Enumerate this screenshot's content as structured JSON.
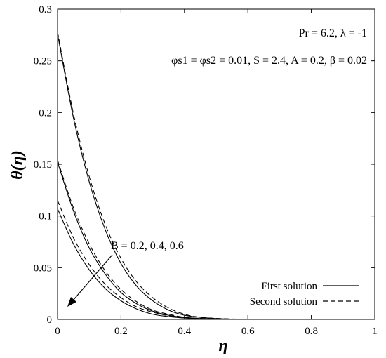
{
  "chart_data": {
    "type": "line",
    "xlabel": "η",
    "ylabel": "θ(η)",
    "xlim": [
      0,
      1
    ],
    "ylim": [
      0,
      0.3
    ],
    "x_ticks": [
      "0",
      "0.2",
      "0.4",
      "0.6",
      "0.8",
      "1"
    ],
    "y_ticks": [
      "0",
      "0.05",
      "0.1",
      "0.15",
      "0.2",
      "0.25",
      "0.3"
    ],
    "x_tick_values": [
      0,
      0.2,
      0.4,
      0.6,
      0.8,
      1
    ],
    "y_tick_values": [
      0,
      0.05,
      0.1,
      0.15,
      0.2,
      0.25,
      0.3
    ],
    "grid": false,
    "legend_position": "bottom-right",
    "legend": [
      {
        "label": "First solution",
        "style": "solid"
      },
      {
        "label": "Second solution",
        "style": "dashed"
      }
    ],
    "annotations": {
      "params_line1": "Pr = 6.2, λ = -1",
      "params_line2": "φs1 = φs2 = 0.01, S = 2.4, A = 0.2, β = 0.02",
      "arrow_label": "B = 0.2, 0.4, 0.6"
    },
    "series": [
      {
        "B": 0.2,
        "style": "solid",
        "x": [
          0,
          0.05,
          0.1,
          0.15,
          0.2,
          0.25,
          0.3,
          0.35,
          0.4,
          0.45,
          0.5,
          0.55,
          0.6,
          0.65
        ],
        "values": [
          0.276,
          0.195,
          0.133,
          0.087,
          0.054,
          0.032,
          0.018,
          0.009,
          0.004,
          0.002,
          0.0008,
          0.0003,
          0.0001,
          0
        ]
      },
      {
        "B": 0.2,
        "style": "dashed",
        "x": [
          0,
          0.05,
          0.1,
          0.15,
          0.2,
          0.25,
          0.3,
          0.35,
          0.4,
          0.45,
          0.5,
          0.55,
          0.6,
          0.65
        ],
        "values": [
          0.278,
          0.199,
          0.138,
          0.092,
          0.059,
          0.036,
          0.021,
          0.011,
          0.005,
          0.002,
          0.001,
          0.0004,
          0.0001,
          0
        ]
      },
      {
        "B": 0.4,
        "style": "solid",
        "x": [
          0,
          0.05,
          0.1,
          0.15,
          0.2,
          0.25,
          0.3,
          0.35,
          0.4,
          0.45,
          0.5,
          0.55,
          0.6,
          0.65
        ],
        "values": [
          0.152,
          0.105,
          0.069,
          0.044,
          0.026,
          0.015,
          0.008,
          0.004,
          0.002,
          0.0008,
          0.0003,
          0.0001,
          0,
          0
        ]
      },
      {
        "B": 0.4,
        "style": "dashed",
        "x": [
          0,
          0.05,
          0.1,
          0.15,
          0.2,
          0.25,
          0.3,
          0.35,
          0.4,
          0.45,
          0.5,
          0.55,
          0.6,
          0.65
        ],
        "values": [
          0.154,
          0.108,
          0.073,
          0.047,
          0.029,
          0.017,
          0.009,
          0.005,
          0.002,
          0.001,
          0.0004,
          0.0001,
          0,
          0
        ]
      },
      {
        "B": 0.6,
        "style": "solid",
        "x": [
          0,
          0.05,
          0.1,
          0.15,
          0.2,
          0.25,
          0.3,
          0.35,
          0.4,
          0.45,
          0.5,
          0.55,
          0.6,
          0.65
        ],
        "values": [
          0.107,
          0.073,
          0.048,
          0.03,
          0.018,
          0.01,
          0.005,
          0.0027,
          0.0013,
          0.0006,
          0.0002,
          0.0001,
          0,
          0
        ]
      },
      {
        "B": 0.6,
        "style": "dashed",
        "x": [
          0,
          0.05,
          0.1,
          0.15,
          0.2,
          0.25,
          0.3,
          0.35,
          0.4,
          0.45,
          0.5,
          0.55,
          0.6,
          0.65
        ],
        "values": [
          0.115,
          0.079,
          0.053,
          0.034,
          0.021,
          0.012,
          0.007,
          0.0035,
          0.0017,
          0.0008,
          0.0003,
          0.0001,
          0,
          0
        ]
      }
    ]
  }
}
